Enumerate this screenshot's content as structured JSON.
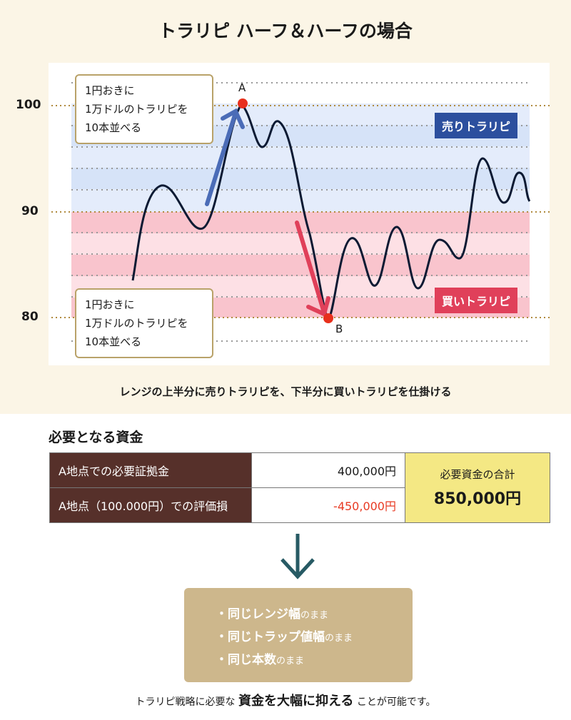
{
  "title": "トラリピ ハーフ＆ハーフの場合",
  "chart": {
    "y_ticks": [
      "100",
      "90",
      "80"
    ],
    "point_a": "A",
    "point_b": "B",
    "sell_tag": "売りトラリピ",
    "buy_tag": "買いトラリピ",
    "sell_callout": [
      "1円おきに",
      "1万ドルのトラリピを",
      "10本並べる"
    ],
    "buy_callout": [
      "1円おきに",
      "1万ドルのトラリピを",
      "10本並べる"
    ],
    "colors": {
      "sell": "#2c4f9e",
      "buy": "#e0405a",
      "price_line": "#0c1a33",
      "point": "#e8301c"
    }
  },
  "caption": "レンジの上半分に売りトラリピを、下半分に買いトラリピを仕掛ける",
  "section_title": "必要となる資金",
  "table": {
    "row1_label": "A地点での必要証拠金",
    "row1_value": "400,000円",
    "row2_label": "A地点（100.000円）での評価損",
    "row2_value": "-450,000円",
    "total_label": "必要資金の合計",
    "total_value": "850,000円"
  },
  "conditions": [
    {
      "main": "同じレンジ幅",
      "suffix": "のまま"
    },
    {
      "main": "同じトラップ値幅",
      "suffix": "のまま"
    },
    {
      "main": "同じ本数",
      "suffix": "のまま"
    }
  ],
  "conclusion": {
    "pre": "トラリピ戦略に必要な ",
    "emph": "資金を大幅に抑える",
    "post": " ことが可能です。"
  },
  "icons": {
    "down_arrow": "down-arrow-icon",
    "bullet": "・"
  }
}
